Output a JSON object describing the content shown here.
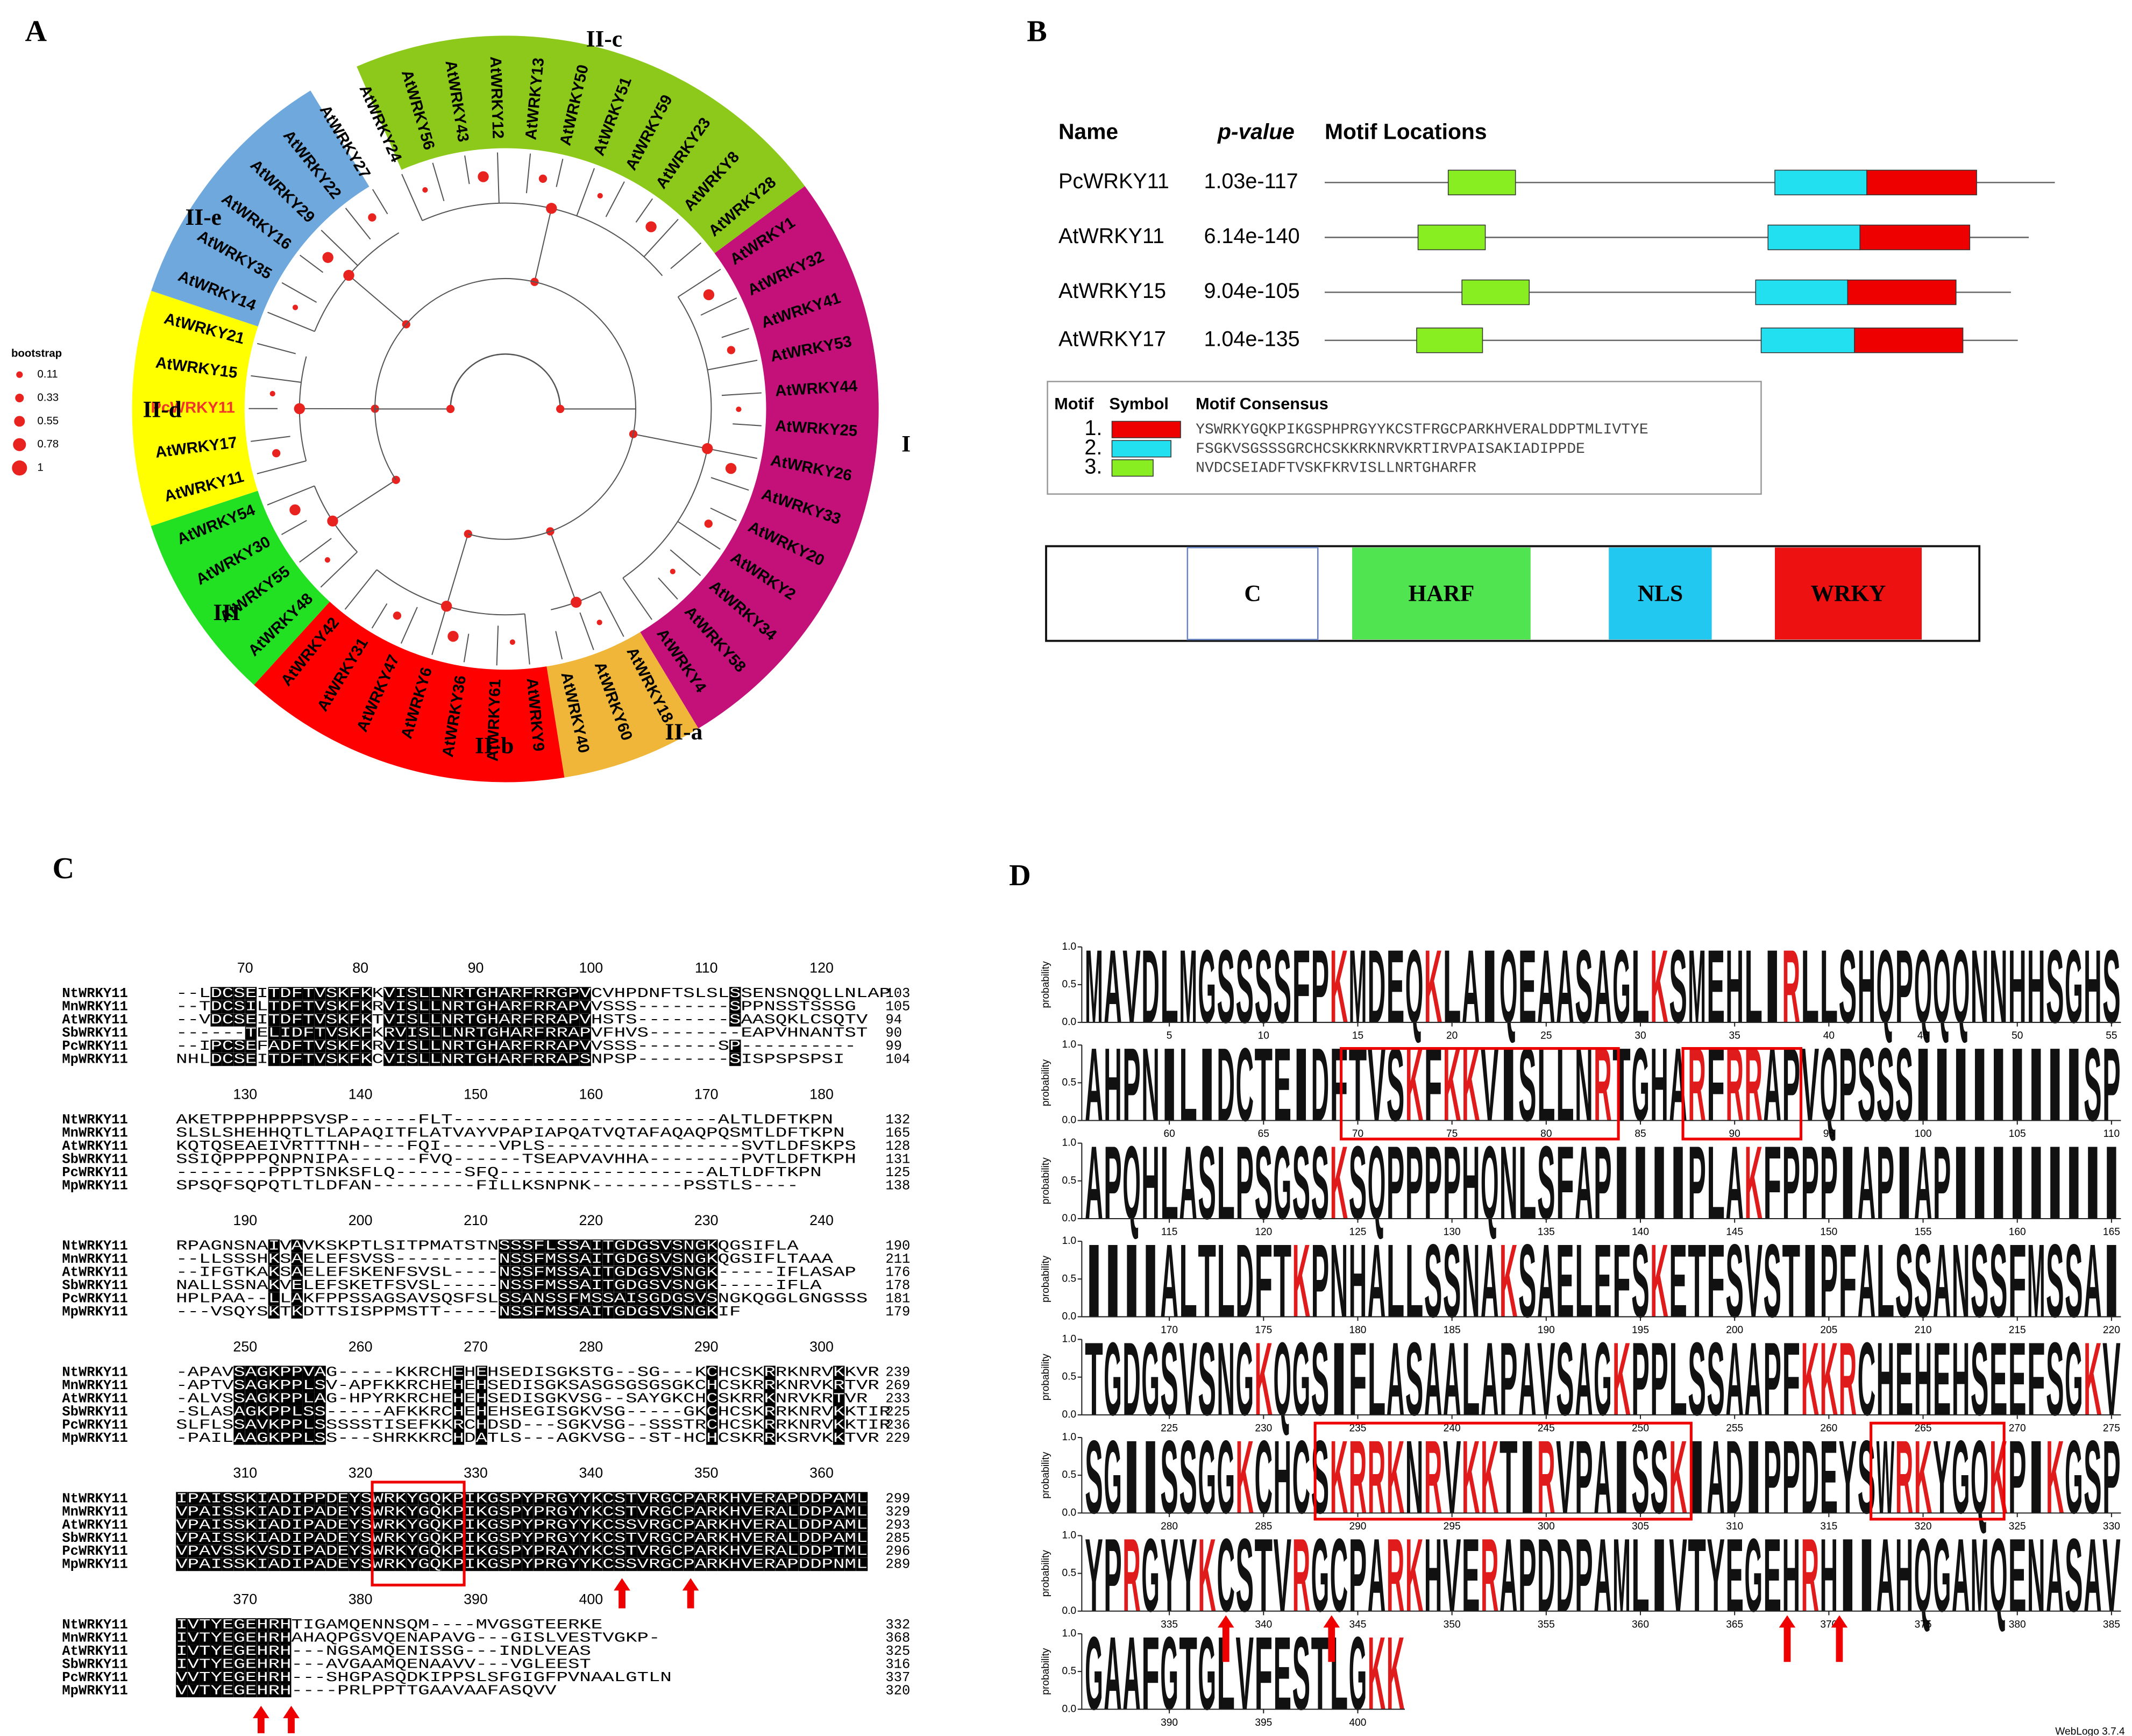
{
  "panel_labels": [
    "A",
    "B",
    "C",
    "D"
  ],
  "tree": {
    "legend": {
      "title": "bootstrap",
      "values": [
        0.11,
        0.33,
        0.55,
        0.78,
        1
      ]
    },
    "node_color": "#e8231f",
    "highlight_color": "#f0352a",
    "branch_color": "#555555",
    "clades": [
      {
        "label": "III",
        "color": "#22e022",
        "leaves": [
          "AtWRKY48",
          "AtWRKY55",
          "AtWRKY30",
          "AtWRKY54"
        ]
      },
      {
        "label": "II-d",
        "color": "#ffff00",
        "leaves": [
          "AtWRKY11",
          "AtWRKY17",
          "PcWRKY11",
          "AtWRKY15",
          "AtWRKY21"
        ]
      },
      {
        "label": "II-e",
        "color": "#6fa8dc",
        "leaves": [
          "AtWRKY14",
          "AtWRKY35",
          "AtWRKY16",
          "AtWRKY29",
          "AtWRKY22",
          "AtWRKY27"
        ]
      },
      {
        "label": "II-c",
        "color": "#8dc91a",
        "leaves": [
          "AtWRKY24",
          "AtWRKY56",
          "AtWRKY43",
          "AtWRKY12",
          "AtWRKY13",
          "AtWRKY50",
          "AtWRKY51",
          "AtWRKY59",
          "AtWRKY23",
          "AtWRKY8",
          "AtWRKY28"
        ]
      },
      {
        "label": "I",
        "color": "#c4117a",
        "leaves": [
          "AtWRKY1",
          "AtWRKY32",
          "AtWRKY41",
          "AtWRKY53",
          "AtWRKY44",
          "AtWRKY25",
          "AtWRKY26",
          "AtWRKY33",
          "AtWRKY20",
          "AtWRKY2",
          "AtWRKY34",
          "AtWRKY58",
          "AtWRKY4"
        ]
      },
      {
        "label": "II-a",
        "color": "#f0b63a",
        "leaves": [
          "AtWRKY18",
          "AtWRKY60",
          "AtWRKY40"
        ]
      },
      {
        "label": "II-b",
        "color": "#ff0000",
        "leaves": [
          "AtWRKY9",
          "AtWRKY61",
          "AtWRKY36",
          "AtWRKY6",
          "AtWRKY47",
          "AtWRKY31",
          "AtWRKY42"
        ]
      }
    ]
  },
  "motifs": {
    "headers": [
      "Name",
      "p-value",
      "Motif Locations"
    ],
    "rows": [
      {
        "name": "PcWRKY11",
        "pvalue": "1.03e-117"
      },
      {
        "name": "AtWRKY11",
        "pvalue": "6.14e-140"
      },
      {
        "name": "AtWRKY15",
        "pvalue": "9.04e-105"
      },
      {
        "name": "AtWRKY17",
        "pvalue": "1.04e-135"
      }
    ],
    "legend": {
      "headers": [
        "Motif",
        "Symbol",
        "Motif Consensus"
      ],
      "items": [
        {
          "number": "1.",
          "color": "#ee0000",
          "consensus": "YSWRKYGQKPIKGSPHPRGYYKCSTFRGCPARKHVERALDDPTMLIVTYE"
        },
        {
          "number": "2.",
          "color": "#22e0f0",
          "consensus": "FSGKVSGSSSGRCHCSKKRKNRVKRTIRVPAISAKIADIPPDE"
        },
        {
          "number": "3.",
          "color": "#88ee22",
          "consensus": "NVDCSEIADFTVSKFKRVISLLNRTGHARFR"
        }
      ]
    }
  },
  "domains": [
    {
      "label": "C",
      "color": "#ffffff"
    },
    {
      "label": "HARF",
      "color": "#50e450"
    },
    {
      "label": "NLS",
      "color": "#22c8f0"
    },
    {
      "label": "WRKY",
      "color": "#ee1111"
    }
  ],
  "alignment": {
    "names": [
      "NtWRKY11",
      "MnWRKY11",
      "AtWRKY11",
      "SbWRKY11",
      "PcWRKY11",
      "MpWRKY11"
    ],
    "blocks": [
      {
        "ruler": [
          70,
          80,
          90,
          100,
          110,
          120
        ],
        "rows": [
          {
            "seq": "--LDCSEITDFTVSKFKKVISLLNRTGHARFRRGPVCVHPDNFTSLSLSSENSNQQLLNLAP",
            "end": 103
          },
          {
            "seq": "--TDCSILTDFTVSKFKRVISLLNRTGHARFRRAPVVSSS--------SPPNSSTSSSG",
            "end": 105
          },
          {
            "seq": "--VDCSEITDFTVSKFKTVISLLNRTGHARFRRAPVHSTS--------SAASQKLCSQTV",
            "end": 94
          },
          {
            "seq": "------TELIDFTVSKFKRVISLLNRTGHARFRRAPVFHVS--------EAPVHNANTST",
            "end": 90
          },
          {
            "seq": "--IPCSEFADFTVSKFKRVISLLNRTGHARFRRAPVVSSS-------SP----------",
            "end": 99
          },
          {
            "seq": "NHLDCSEITDFTVSKFKCVISLLNRTGHARFRRAPSNPSP--------SISPSPSPSI",
            "end": 104
          }
        ]
      },
      {
        "ruler": [
          130,
          140,
          150,
          160,
          170,
          180
        ],
        "rows": [
          {
            "seq": "AKETPPPHPPPSVSP------FLT-----------------------ALTLDFTKPN",
            "end": 132
          },
          {
            "seq": "SLSLSHEHHQTLTLAPAQITFLATVAYVPAPIAPQATVQTAFAQAQPQSMTLDFTKPN",
            "end": 165
          },
          {
            "seq": "KQTQSEAEIVRTTTNH----FQI-----VPLS-----------------SVTLDFSKPS",
            "end": 128
          },
          {
            "seq": "SSIQPPPPQNPNIPA------FVQ------TSEAPVAVHHA--------PVTLDFTKPH",
            "end": 131
          },
          {
            "seq": "--------PPPTSNKSFLQ------SFQ------------------ALTLDFTKPN",
            "end": 125
          },
          {
            "seq": "SPSQFSQPQTLTLDFAN---------FILLKSNPNK--------PSSTLS----",
            "end": 138
          }
        ]
      },
      {
        "ruler": [
          190,
          200,
          210,
          220,
          230,
          240
        ],
        "rows": [
          {
            "seq": "RPAGNSNAIVAVKSKPTLSITPMATSTNSSSFLSSAITGDGSVSNGKQGSIFLA",
            "end": 190
          },
          {
            "seq": "--LLSSSHKSAELEFSVSS---------NSSFMSSAITGDGSVSNGKQGSIFLTAAA",
            "end": 211
          },
          {
            "seq": "--IFGTKAKSAELEFSKENFSVSL----NSSFMSSAITGDGSVSNGK-----IFLASAP",
            "end": 176
          },
          {
            "seq": "NALLSSNAKVELEFSKETFSVSL-----NSSFMSSAITGDGSVSNGK-----IFLA",
            "end": 178
          },
          {
            "seq": "HPLPAA--LLAKFPPSSAGSAVSQSFSLSSANSSFMSSAISGDGSVSNGKQGGLGNGSSS",
            "end": 181
          },
          {
            "seq": "---VSQYSKTKDTTSISPPMSTT-----NSSFMSSAITGDGSVSNGKIF",
            "end": 179
          }
        ]
      },
      {
        "ruler": [
          250,
          260,
          270,
          280,
          290,
          300
        ],
        "rows": [
          {
            "seq": "-APAVSAGKPPVAG-----KKRCHEHEHSEDISGKSTG--SG---KCHCSKRRKNRVKKVR",
            "end": 239
          },
          {
            "seq": "-APTVSAGKPPLSV-APFKKRCHEHEHSEDISGKSASGSGSGSGKCHCSKRRKNRVKRTVR",
            "end": 269
          },
          {
            "seq": "-ALVSSAGKPPLAG-HPYRKRCHEHEHSEDISGKVSG--SAYGKCHCSKRRKNRVKRTVR",
            "end": 233
          },
          {
            "seq": "-SLASAGKPPLSS-----AFKKRCHEHEHSEGISGKVSG-----GKCHCSKRRKNRVKKTIR",
            "end": 225
          },
          {
            "seq": "SLFLSSAVKPPLSSSSSTISEFKKRCHDSD---SGKVSG--SSSTRCHCSKRRKNRVKKTIR",
            "end": 236
          },
          {
            "seq": "-PAILAAGKPPLSS---SHRKKRCHDATLS---AGKVSG--ST-HCHCSKRRKSRVKKTVR",
            "end": 229
          }
        ]
      },
      {
        "ruler": [
          310,
          320,
          330,
          340,
          350,
          360
        ],
        "rows": [
          {
            "seq": "IPAISSKIADIPPDEYSWRKYGQKPIKGSPYPRGYYKCSTVRGCPARKHVERAPDDPAML",
            "end": 299
          },
          {
            "seq": "VPAISSKIADIPADEYSWRKYGQKPIKGSPYPRGYYKCSTVRGCPARKHVERALDDPAML",
            "end": 329
          },
          {
            "seq": "VPAISSKIADIPADEYSWRKYGQKPIKGSPYPRGYYKCSSVRGCPARKHVERALDDPAML",
            "end": 293
          },
          {
            "seq": "VPAISSKIADIPADEYSWRKYGQKPIKGSPYPRGYYKCSTVRGCPARKHVERALDDPAML",
            "end": 285
          },
          {
            "seq": "VPAVSSKVSDIPADEYSWRKYGQKPIKGSPYPRAYYKCSTVRGCPARKHVERALDDPTML",
            "end": 296
          },
          {
            "seq": "VPAISSKIADIPADEYSWRKYGQKPIKGSPYPRGYYKCSSVRGCPARKHVERAPDDPNML",
            "end": 289
          }
        ]
      },
      {
        "ruler": [
          370,
          380,
          390,
          400
        ],
        "rows": [
          {
            "seq": "IVTYEGEHRHTIGAMQENNSQM----MVGSGTEERKE",
            "end": 332
          },
          {
            "seq": "IVTYEGEHRHAHAQPGSVQENAPAVG---GISLVESTVGKP-",
            "end": 368
          },
          {
            "seq": "IVTYEGEHRH---NGSAMQENISSG---INDLVEAS",
            "end": 325
          },
          {
            "seq": "IVTYEGEHRH---AVGAAMQENAAVV---VGLEEST",
            "end": 316
          },
          {
            "seq": "VVTYEGEHRH---SHGPASQDKIPPSLSFGIGFPVNAALGTLN",
            "end": 337
          },
          {
            "seq": "VVTYEGEHRH----PRLPPTTGAAVAAFASQVV",
            "end": 320
          }
        ]
      }
    ]
  },
  "logo": {
    "ylabel": "probability",
    "yticks": [
      {
        "value": 0,
        "label": "0.0"
      },
      {
        "value": 0.5,
        "label": "0.5"
      },
      {
        "value": 1,
        "label": "1.0"
      }
    ],
    "letter_colors": {
      "K": "#e01b1b",
      "R": "#e01b1b"
    },
    "default_color": "#111111",
    "credit": "WebLogo 3.7.4",
    "rows": [
      {
        "letters": [
          "M",
          "A",
          "V",
          "D",
          "L",
          "M",
          "G",
          "S",
          "S",
          "S",
          "S",
          "F",
          "P",
          "K",
          "M",
          "D",
          "E",
          "Q",
          "K",
          "L",
          "A",
          "I",
          "Q",
          "E",
          "A",
          "A",
          "S",
          "A",
          "G",
          "L",
          "K",
          "S",
          "M",
          "E",
          "H",
          "L",
          "I",
          "R",
          "L",
          "L",
          "S",
          "H",
          "Q",
          "P",
          "Q",
          "Q",
          "Q",
          "N",
          "N",
          "H",
          "H",
          "S",
          "G",
          "H",
          "S"
        ],
        "ticks": [
          5,
          10,
          15,
          20,
          25,
          30,
          35,
          40,
          45,
          50,
          55
        ]
      },
      {
        "letters": [
          "A",
          "H",
          "P",
          "N",
          "I",
          "L",
          "I",
          "D",
          "C",
          "T",
          "E",
          "I",
          "D",
          "F",
          "T",
          "V",
          "S",
          "K",
          "F",
          "K",
          "K",
          "V",
          "I",
          "S",
          "L",
          "L",
          "N",
          "R",
          "T",
          "G",
          "H",
          "A",
          "R",
          "F",
          "R",
          "R",
          "A",
          "P",
          "V",
          "Q",
          "P",
          "S",
          "S",
          "S",
          "I",
          "I",
          "I",
          "I",
          "I",
          "I",
          "I",
          "I",
          "I",
          "S",
          "P"
        ],
        "ticks": [
          60,
          65,
          70,
          75,
          80,
          85,
          90,
          95,
          100,
          105,
          110
        ]
      },
      {
        "letters": [
          "A",
          "P",
          "Q",
          "H",
          "L",
          "A",
          "S",
          "L",
          "P",
          "S",
          "G",
          "S",
          "S",
          "K",
          "S",
          "Q",
          "P",
          "P",
          "P",
          "P",
          "H",
          "Q",
          "N",
          "L",
          "S",
          "F",
          "A",
          "P",
          "I",
          "I",
          "I",
          "I",
          "P",
          "L",
          "A",
          "K",
          "F",
          "P",
          "P",
          "P",
          "I",
          "A",
          "P",
          "I",
          "A",
          "P",
          "I",
          "I",
          "I",
          "I",
          "I",
          "I",
          "I",
          "I",
          "I"
        ],
        "ticks": [
          115,
          120,
          125,
          130,
          135,
          140,
          145,
          150,
          155,
          160,
          165
        ]
      },
      {
        "letters": [
          "I",
          "I",
          "I",
          "I",
          "A",
          "L",
          "T",
          "L",
          "D",
          "F",
          "T",
          "K",
          "P",
          "N",
          "H",
          "A",
          "L",
          "L",
          "S",
          "S",
          "N",
          "A",
          "K",
          "S",
          "A",
          "E",
          "L",
          "E",
          "F",
          "S",
          "K",
          "E",
          "T",
          "F",
          "S",
          "V",
          "S",
          "T",
          "I",
          "P",
          "F",
          "A",
          "L",
          "S",
          "S",
          "A",
          "N",
          "S",
          "S",
          "F",
          "M",
          "S",
          "S",
          "A",
          "I"
        ],
        "ticks": [
          170,
          175,
          180,
          185,
          190,
          195,
          200,
          205,
          210,
          215,
          220
        ]
      },
      {
        "letters": [
          "T",
          "G",
          "D",
          "G",
          "S",
          "V",
          "S",
          "N",
          "G",
          "K",
          "Q",
          "G",
          "S",
          "I",
          "F",
          "L",
          "A",
          "S",
          "A",
          "A",
          "L",
          "A",
          "P",
          "A",
          "V",
          "S",
          "A",
          "G",
          "K",
          "P",
          "P",
          "L",
          "S",
          "S",
          "A",
          "A",
          "P",
          "F",
          "K",
          "K",
          "R",
          "C",
          "H",
          "E",
          "H",
          "E",
          "H",
          "S",
          "E",
          "E",
          "F",
          "S",
          "G",
          "K",
          "V"
        ],
        "ticks": [
          225,
          230,
          235,
          240,
          245,
          250,
          255,
          260,
          265,
          270,
          275
        ]
      },
      {
        "letters": [
          "S",
          "G",
          "I",
          "I",
          "S",
          "S",
          "G",
          "G",
          "K",
          "C",
          "H",
          "C",
          "S",
          "K",
          "R",
          "R",
          "K",
          "N",
          "R",
          "V",
          "K",
          "K",
          "T",
          "I",
          "R",
          "V",
          "P",
          "A",
          "I",
          "S",
          "S",
          "K",
          "I",
          "A",
          "D",
          "I",
          "P",
          "P",
          "D",
          "E",
          "Y",
          "S",
          "W",
          "R",
          "K",
          "Y",
          "G",
          "Q",
          "K",
          "P",
          "I",
          "K",
          "G",
          "S",
          "P"
        ],
        "ticks": [
          280,
          285,
          290,
          295,
          300,
          305,
          310,
          315,
          320,
          325,
          330
        ]
      },
      {
        "letters": [
          "Y",
          "P",
          "R",
          "G",
          "Y",
          "Y",
          "K",
          "C",
          "S",
          "T",
          "V",
          "R",
          "G",
          "C",
          "P",
          "A",
          "R",
          "K",
          "H",
          "V",
          "E",
          "R",
          "A",
          "P",
          "D",
          "D",
          "P",
          "A",
          "M",
          "L",
          "I",
          "V",
          "T",
          "Y",
          "E",
          "G",
          "E",
          "H",
          "R",
          "H",
          "I",
          "I",
          "A",
          "H",
          "Q",
          "G",
          "A",
          "M",
          "Q",
          "E",
          "N",
          "A",
          "S",
          "A",
          "V"
        ],
        "ticks": [
          335,
          340,
          345,
          350,
          355,
          360,
          365,
          370,
          375,
          380,
          385
        ]
      },
      {
        "letters": [
          "G",
          "A",
          "A",
          "F",
          "G",
          "T",
          "G",
          "L",
          "V",
          "F",
          "E",
          "S",
          "T",
          "L",
          "G",
          "K",
          "K"
        ],
        "ticks": [
          390,
          395,
          400
        ]
      }
    ]
  }
}
